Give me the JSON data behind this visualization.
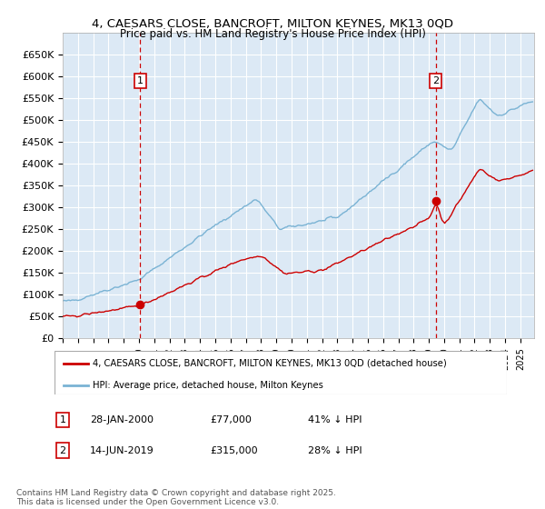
{
  "title_line1": "4, CAESARS CLOSE, BANCROFT, MILTON KEYNES, MK13 0QD",
  "title_line2": "Price paid vs. HM Land Registry's House Price Index (HPI)",
  "ylim": [
    0,
    700000
  ],
  "yticks": [
    0,
    50000,
    100000,
    150000,
    200000,
    250000,
    300000,
    350000,
    400000,
    450000,
    500000,
    550000,
    600000,
    650000
  ],
  "ytick_labels": [
    "£0",
    "£50K",
    "£100K",
    "£150K",
    "£200K",
    "£250K",
    "£300K",
    "£350K",
    "£400K",
    "£450K",
    "£500K",
    "£550K",
    "£600K",
    "£650K"
  ],
  "bg_color": "#dce9f5",
  "grid_color": "#ffffff",
  "sale1_date": 2000.08,
  "sale1_price": 77000,
  "sale1_label": "1",
  "sale2_date": 2019.45,
  "sale2_price": 315000,
  "sale2_label": "2",
  "red_line_color": "#cc0000",
  "blue_line_color": "#7ab3d4",
  "sale_dot_color": "#cc0000",
  "vline_color": "#cc0000",
  "legend_red_label": "4, CAESARS CLOSE, BANCROFT, MILTON KEYNES, MK13 0QD (detached house)",
  "legend_blue_label": "HPI: Average price, detached house, Milton Keynes",
  "note1_label": "1",
  "note1_date": "28-JAN-2000",
  "note1_price": "£77,000",
  "note1_pct": "41% ↓ HPI",
  "note2_label": "2",
  "note2_date": "14-JUN-2019",
  "note2_price": "£315,000",
  "note2_pct": "28% ↓ HPI",
  "footnote": "Contains HM Land Registry data © Crown copyright and database right 2025.\nThis data is licensed under the Open Government Licence v3.0.",
  "xmin": 1995.0,
  "xmax": 2025.9
}
